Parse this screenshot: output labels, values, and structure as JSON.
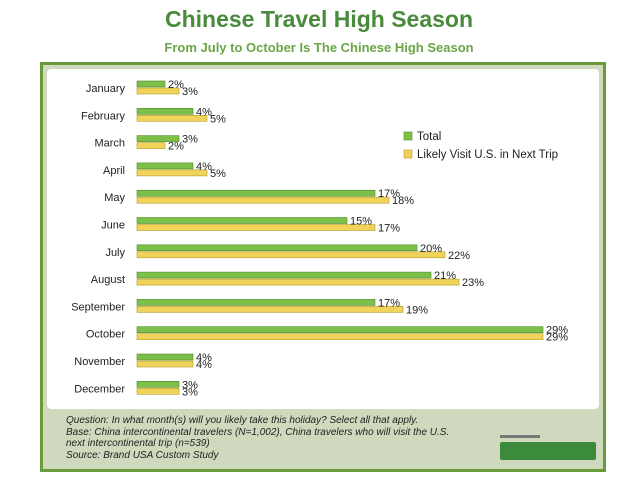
{
  "header": {
    "title": "Chinese Travel High Season",
    "subtitle": "From July to October Is The Chinese High Season"
  },
  "colors": {
    "title": "#4a8a3c",
    "subtitle": "#6aa646",
    "total": "#7cc04a",
    "likely": "#f0d35a"
  },
  "chart_data": {
    "type": "bar",
    "orientation": "horizontal",
    "categories": [
      "January",
      "February",
      "March",
      "April",
      "May",
      "June",
      "July",
      "August",
      "September",
      "October",
      "November",
      "December"
    ],
    "series": [
      {
        "name": "Total",
        "values": [
          2,
          4,
          3,
          4,
          17,
          15,
          20,
          21,
          17,
          29,
          4,
          3
        ]
      },
      {
        "name": "Likely Visit U.S. in Next Trip",
        "values": [
          3,
          5,
          2,
          5,
          18,
          17,
          22,
          23,
          19,
          29,
          4,
          3
        ]
      }
    ],
    "value_suffix": "%",
    "xlim": [
      0,
      30
    ],
    "grid": false,
    "legend_position": "right"
  },
  "footer": {
    "question": "Question:  In what month(s) will you likely take this holiday? Select all that apply.",
    "base_line1": "Base: China intercontinental travelers (N=1,002), China travelers who will visit the U.S.",
    "base_line2": "next intercontinental trip (n=539)",
    "source": "Source: Brand USA Custom Study"
  }
}
